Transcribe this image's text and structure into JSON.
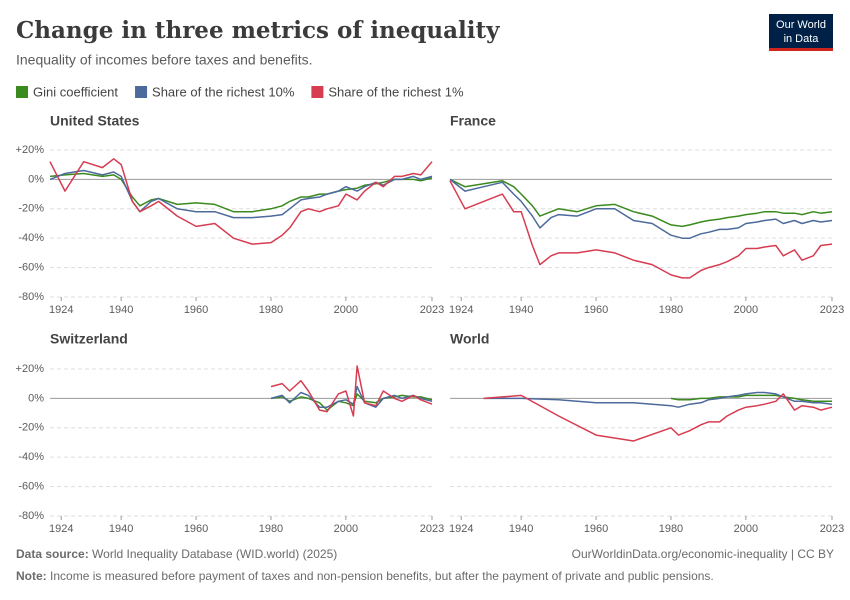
{
  "header": {
    "title": "Change in three metrics of inequality",
    "subtitle": "Inequality of incomes before taxes and benefits.",
    "logo": [
      "Our World",
      "in Data"
    ]
  },
  "chart_data": [
    {
      "type": "line",
      "title": "United States",
      "xlim": [
        1921,
        2023
      ],
      "ylim": [
        -80,
        22
      ],
      "grid": true,
      "xticks": [
        1924,
        1940,
        1960,
        1980,
        2000,
        2023
      ],
      "yticks": [
        {
          "value": 20,
          "label": "+20%"
        },
        {
          "value": 0,
          "label": "0%"
        },
        {
          "value": -20,
          "label": "-20%"
        },
        {
          "value": -40,
          "label": "-40%"
        },
        {
          "value": -60,
          "label": "-60%"
        },
        {
          "value": -80,
          "label": "-80%"
        }
      ],
      "x": [
        1921,
        1925,
        1930,
        1935,
        1938,
        1940,
        1943,
        1945,
        1948,
        1950,
        1955,
        1960,
        1965,
        1970,
        1975,
        1980,
        1983,
        1985,
        1988,
        1990,
        1993,
        1995,
        1998,
        2000,
        2003,
        2005,
        2008,
        2010,
        2013,
        2015,
        2018,
        2020,
        2023
      ],
      "series": [
        {
          "name": "Gini coefficient",
          "color": "#3a8a1e",
          "values": [
            2,
            3,
            4,
            2,
            3,
            0,
            -12,
            -18,
            -14,
            -13,
            -17,
            -16,
            -17,
            -22,
            -22,
            -20,
            -18,
            -15,
            -12,
            -12,
            -10,
            -10,
            -8,
            -7,
            -6,
            -4,
            -3,
            -2,
            0,
            0,
            0,
            -1,
            1
          ]
        },
        {
          "name": "Share of the richest 10%",
          "color": "#4c6a9c",
          "values": [
            0,
            4,
            6,
            3,
            5,
            2,
            -15,
            -22,
            -15,
            -13,
            -20,
            -22,
            -22,
            -26,
            -26,
            -25,
            -24,
            -20,
            -14,
            -13,
            -12,
            -10,
            -8,
            -5,
            -8,
            -5,
            -2,
            -4,
            0,
            0,
            2,
            0,
            2
          ]
        },
        {
          "name": "Share of the richest 1%",
          "color": "#d73c50",
          "values": [
            12,
            -8,
            12,
            8,
            14,
            10,
            -15,
            -22,
            -18,
            -15,
            -25,
            -32,
            -30,
            -40,
            -44,
            -43,
            -38,
            -33,
            -22,
            -20,
            -22,
            -20,
            -18,
            -10,
            -14,
            -8,
            -2,
            -5,
            2,
            2,
            4,
            3,
            12
          ]
        }
      ]
    },
    {
      "type": "line",
      "title": "France",
      "xlim": [
        1921,
        2023
      ],
      "ylim": [
        -80,
        22
      ],
      "grid": true,
      "xticks": [
        1924,
        1940,
        1960,
        1980,
        2000,
        2023
      ],
      "yticks": [
        {
          "value": 20,
          "label": "+20%"
        },
        {
          "value": 0,
          "label": "0%"
        },
        {
          "value": -20,
          "label": "-20%"
        },
        {
          "value": -40,
          "label": "-40%"
        },
        {
          "value": -60,
          "label": "-60%"
        },
        {
          "value": -80,
          "label": "-80%"
        }
      ],
      "x": [
        1921,
        1925,
        1930,
        1935,
        1938,
        1940,
        1943,
        1945,
        1948,
        1950,
        1955,
        1960,
        1965,
        1970,
        1975,
        1980,
        1983,
        1985,
        1988,
        1990,
        1993,
        1995,
        1998,
        2000,
        2003,
        2005,
        2008,
        2010,
        2013,
        2015,
        2018,
        2020,
        2023
      ],
      "series": [
        {
          "name": "Gini coefficient",
          "color": "#3a8a1e",
          "values": [
            0,
            -5,
            -3,
            -1,
            -5,
            -10,
            -18,
            -25,
            -22,
            -20,
            -22,
            -18,
            -17,
            -22,
            -25,
            -31,
            -32,
            -31,
            -29,
            -28,
            -27,
            -26,
            -25,
            -24,
            -23,
            -22,
            -22,
            -23,
            -23,
            -24,
            -22,
            -23,
            -22
          ]
        },
        {
          "name": "Share of the richest 10%",
          "color": "#4c6a9c",
          "values": [
            0,
            -8,
            -5,
            -2,
            -10,
            -15,
            -25,
            -33,
            -26,
            -24,
            -25,
            -20,
            -20,
            -28,
            -30,
            -38,
            -40,
            -40,
            -37,
            -36,
            -34,
            -34,
            -33,
            -30,
            -29,
            -28,
            -27,
            -30,
            -28,
            -30,
            -28,
            -29,
            -28
          ]
        },
        {
          "name": "Share of the richest 1%",
          "color": "#d73c50",
          "values": [
            -1,
            -20,
            -15,
            -10,
            -22,
            -22,
            -45,
            -58,
            -52,
            -50,
            -50,
            -48,
            -50,
            -55,
            -58,
            -65,
            -67,
            -67,
            -62,
            -60,
            -58,
            -56,
            -52,
            -47,
            -47,
            -46,
            -45,
            -52,
            -48,
            -55,
            -52,
            -45,
            -44
          ]
        }
      ]
    },
    {
      "type": "line",
      "title": "Switzerland",
      "xlim": [
        1921,
        2023
      ],
      "ylim": [
        -80,
        22
      ],
      "grid": true,
      "xticks": [
        1924,
        1940,
        1960,
        1980,
        2000,
        2023
      ],
      "yticks": [
        {
          "value": 20,
          "label": "+20%"
        },
        {
          "value": 0,
          "label": "0%"
        },
        {
          "value": -20,
          "label": "-20%"
        },
        {
          "value": -40,
          "label": "-40%"
        },
        {
          "value": -60,
          "label": "-60%"
        },
        {
          "value": -80,
          "label": "-80%"
        }
      ],
      "x": [
        1980,
        1983,
        1985,
        1988,
        1990,
        1993,
        1995,
        1998,
        2000,
        2002,
        2003,
        2005,
        2008,
        2010,
        2013,
        2015,
        2018,
        2020,
        2023
      ],
      "series": [
        {
          "name": "Gini coefficient",
          "color": "#3a8a1e",
          "values": [
            0,
            1,
            -2,
            1,
            0,
            -3,
            -8,
            -2,
            -3,
            -5,
            3,
            -2,
            -3,
            0,
            1,
            2,
            1,
            1,
            -1
          ]
        },
        {
          "name": "Share of the richest 10%",
          "color": "#4c6a9c",
          "values": [
            0,
            2,
            -3,
            4,
            2,
            -6,
            -6,
            -2,
            -1,
            -4,
            8,
            -3,
            -6,
            0,
            2,
            0,
            2,
            0,
            -2
          ]
        },
        {
          "name": "Share of the richest 1%",
          "color": "#d73c50",
          "values": [
            8,
            10,
            5,
            12,
            5,
            -8,
            -9,
            3,
            5,
            -12,
            22,
            -3,
            -5,
            5,
            0,
            -2,
            2,
            -1,
            -4
          ]
        }
      ]
    },
    {
      "type": "line",
      "title": "World",
      "xlim": [
        1921,
        2023
      ],
      "ylim": [
        -80,
        22
      ],
      "grid": true,
      "xticks": [
        1924,
        1940,
        1960,
        1980,
        2000,
        2023
      ],
      "yticks": [
        {
          "value": 20,
          "label": "+20%"
        },
        {
          "value": 0,
          "label": "0%"
        },
        {
          "value": -20,
          "label": "-20%"
        },
        {
          "value": -40,
          "label": "-40%"
        },
        {
          "value": -60,
          "label": "-60%"
        },
        {
          "value": -80,
          "label": "-80%"
        }
      ],
      "x": [
        1920,
        1930,
        1940,
        1950,
        1960,
        1970,
        1980,
        1982,
        1985,
        1988,
        1990,
        1993,
        1995,
        1998,
        2000,
        2003,
        2005,
        2008,
        2010,
        2013,
        2015,
        2018,
        2020,
        2023
      ],
      "series": [
        {
          "name": "Gini coefficient",
          "color": "#3a8a1e",
          "values": [
            null,
            null,
            null,
            null,
            null,
            null,
            0,
            -1,
            -1,
            0,
            0,
            1,
            1,
            1,
            2,
            2,
            2,
            2,
            1,
            0,
            -1,
            -2,
            -2,
            -2
          ]
        },
        {
          "name": "Share of the richest 10%",
          "color": "#4c6a9c",
          "values": [
            null,
            0,
            0,
            -1,
            -3,
            -3,
            -5,
            -6,
            -4,
            -3,
            -1,
            0,
            1,
            2,
            3,
            4,
            4,
            3,
            1,
            -2,
            -2,
            -3,
            -3,
            -4
          ]
        },
        {
          "name": "Share of the richest 1%",
          "color": "#d73c50",
          "values": [
            null,
            0,
            2,
            -12,
            -25,
            -29,
            -20,
            -25,
            -22,
            -18,
            -16,
            -16,
            -12,
            -8,
            -6,
            -5,
            -4,
            -2,
            3,
            -8,
            -5,
            -6,
            -8,
            -6
          ]
        }
      ]
    }
  ],
  "footer": {
    "source_label": "Data source:",
    "source": "World Inequality Database (WID.world) (2025)",
    "url": "OurWorldinData.org/economic-inequality | CC BY",
    "note_label": "Note:",
    "note": "Income is measured before payment of taxes and non-pension benefits, but after the payment of private and public pensions."
  }
}
